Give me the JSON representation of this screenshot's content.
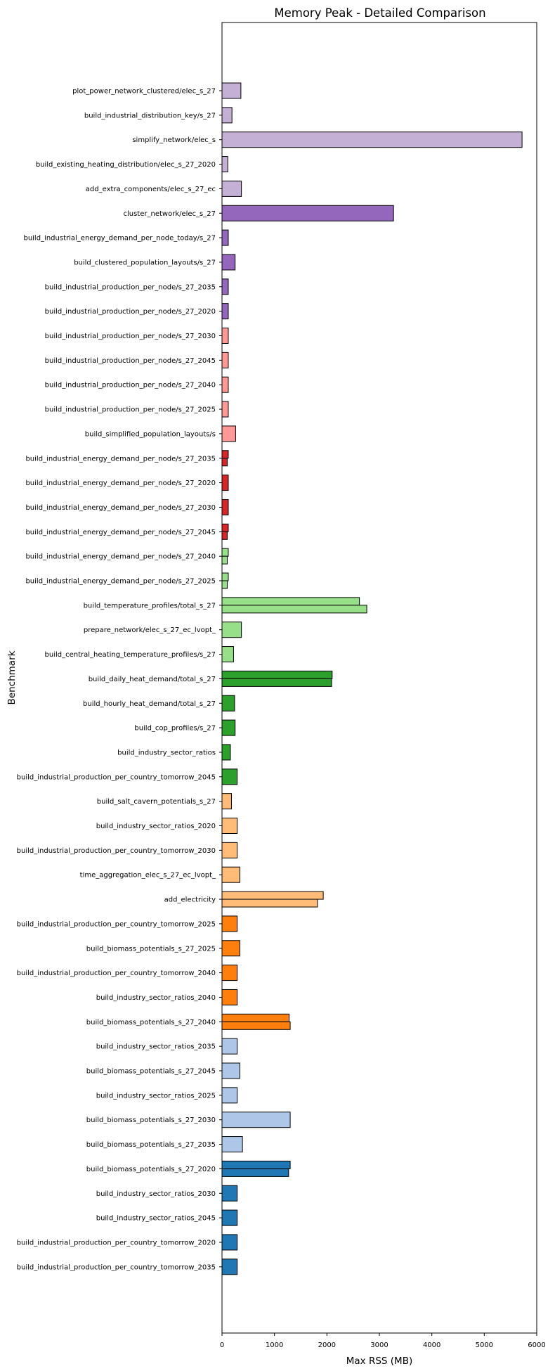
{
  "chart_data": {
    "type": "bar",
    "orientation": "horizontal",
    "title": "Memory Peak - Detailed Comparison",
    "xlabel": "Max RSS (MB)",
    "ylabel": "Benchmark",
    "xlim": [
      0,
      6000
    ],
    "xticks": [
      0,
      1000,
      2000,
      3000,
      4000,
      5000,
      6000
    ],
    "grid": false,
    "categories": [
      {
        "label": "plot_power_network_clustered/elec_s_27",
        "color": "#c5b0d5",
        "values": [
          360
        ]
      },
      {
        "label": "build_industrial_distribution_key/s_27",
        "color": "#c5b0d5",
        "values": [
          190
        ]
      },
      {
        "label": "simplify_network/elec_s",
        "color": "#c5b0d5",
        "values": [
          5720
        ]
      },
      {
        "label": "build_existing_heating_distribution/elec_s_27_2020",
        "color": "#c5b0d5",
        "values": [
          110
        ]
      },
      {
        "label": "add_extra_components/elec_s_27_ec",
        "color": "#c5b0d5",
        "values": [
          370
        ]
      },
      {
        "label": "cluster_network/elec_s_27",
        "color": "#9467bd",
        "values": [
          3270
        ]
      },
      {
        "label": "build_industrial_energy_demand_per_node_today/s_27",
        "color": "#9467bd",
        "values": [
          120
        ]
      },
      {
        "label": "build_clustered_population_layouts/s_27",
        "color": "#9467bd",
        "values": [
          250
        ]
      },
      {
        "label": "build_industrial_production_per_node/s_27_2035",
        "color": "#9467bd",
        "values": [
          120
        ]
      },
      {
        "label": "build_industrial_production_per_node/s_27_2020",
        "color": "#9467bd",
        "values": [
          120
        ]
      },
      {
        "label": "build_industrial_production_per_node/s_27_2030",
        "color": "#ff9896",
        "values": [
          120
        ]
      },
      {
        "label": "build_industrial_production_per_node/s_27_2045",
        "color": "#ff9896",
        "values": [
          120
        ]
      },
      {
        "label": "build_industrial_production_per_node/s_27_2040",
        "color": "#ff9896",
        "values": [
          120
        ]
      },
      {
        "label": "build_industrial_production_per_node/s_27_2025",
        "color": "#ff9896",
        "values": [
          120
        ]
      },
      {
        "label": "build_simplified_population_layouts/s",
        "color": "#ff9896",
        "values": [
          260
        ]
      },
      {
        "label": "build_industrial_energy_demand_per_node/s_27_2035",
        "color": "#d62728",
        "values": [
          120,
          100
        ]
      },
      {
        "label": "build_industrial_energy_demand_per_node/s_27_2020",
        "color": "#d62728",
        "values": [
          120
        ]
      },
      {
        "label": "build_industrial_energy_demand_per_node/s_27_2030",
        "color": "#d62728",
        "values": [
          120
        ]
      },
      {
        "label": "build_industrial_energy_demand_per_node/s_27_2045",
        "color": "#d62728",
        "values": [
          120,
          100
        ]
      },
      {
        "label": "build_industrial_energy_demand_per_node/s_27_2040",
        "color": "#98df8a",
        "values": [
          120,
          100
        ]
      },
      {
        "label": "build_industrial_energy_demand_per_node/s_27_2025",
        "color": "#98df8a",
        "values": [
          120,
          100
        ]
      },
      {
        "label": "build_temperature_profiles/total_s_27",
        "color": "#98df8a",
        "values": [
          2620,
          2760
        ]
      },
      {
        "label": "prepare_network/elec_s_27_ec_lvopt_",
        "color": "#98df8a",
        "values": [
          370
        ]
      },
      {
        "label": "build_central_heating_temperature_profiles/s_27",
        "color": "#98df8a",
        "values": [
          220
        ]
      },
      {
        "label": "build_daily_heat_demand/total_s_27",
        "color": "#2ca02c",
        "values": [
          2100,
          2090
        ]
      },
      {
        "label": "build_hourly_heat_demand/total_s_27",
        "color": "#2ca02c",
        "values": [
          240
        ]
      },
      {
        "label": "build_cop_profiles/s_27",
        "color": "#2ca02c",
        "values": [
          250
        ]
      },
      {
        "label": "build_industry_sector_ratios",
        "color": "#2ca02c",
        "values": [
          160
        ]
      },
      {
        "label": "build_industrial_production_per_country_tomorrow_2045",
        "color": "#2ca02c",
        "values": [
          290
        ]
      },
      {
        "label": "build_salt_cavern_potentials_s_27",
        "color": "#ffbb78",
        "values": [
          180
        ]
      },
      {
        "label": "build_industry_sector_ratios_2020",
        "color": "#ffbb78",
        "values": [
          290
        ]
      },
      {
        "label": "build_industrial_production_per_country_tomorrow_2030",
        "color": "#ffbb78",
        "values": [
          290
        ]
      },
      {
        "label": "time_aggregation_elec_s_27_ec_lvopt_",
        "color": "#ffbb78",
        "values": [
          340
        ]
      },
      {
        "label": "add_electricity",
        "color": "#ffbb78",
        "values": [
          1930,
          1820
        ]
      },
      {
        "label": "build_industrial_production_per_country_tomorrow_2025",
        "color": "#ff7f0e",
        "values": [
          290
        ]
      },
      {
        "label": "build_biomass_potentials_s_27_2025",
        "color": "#ff7f0e",
        "values": [
          340
        ]
      },
      {
        "label": "build_industrial_production_per_country_tomorrow_2040",
        "color": "#ff7f0e",
        "values": [
          290
        ]
      },
      {
        "label": "build_industry_sector_ratios_2040",
        "color": "#ff7f0e",
        "values": [
          290
        ]
      },
      {
        "label": "build_biomass_potentials_s_27_2040",
        "color": "#ff7f0e",
        "values": [
          1280,
          1300
        ]
      },
      {
        "label": "build_industry_sector_ratios_2035",
        "color": "#aec7e8",
        "values": [
          290
        ]
      },
      {
        "label": "build_biomass_potentials_s_27_2045",
        "color": "#aec7e8",
        "values": [
          340
        ]
      },
      {
        "label": "build_industry_sector_ratios_2025",
        "color": "#aec7e8",
        "values": [
          290
        ]
      },
      {
        "label": "build_biomass_potentials_s_27_2030",
        "color": "#aec7e8",
        "values": [
          1300
        ]
      },
      {
        "label": "build_biomass_potentials_s_27_2035",
        "color": "#aec7e8",
        "values": [
          390
        ]
      },
      {
        "label": "build_biomass_potentials_s_27_2020",
        "color": "#1f77b4",
        "values": [
          1300,
          1270
        ]
      },
      {
        "label": "build_industry_sector_ratios_2030",
        "color": "#1f77b4",
        "values": [
          290
        ]
      },
      {
        "label": "build_industry_sector_ratios_2045",
        "color": "#1f77b4",
        "values": [
          290
        ]
      },
      {
        "label": "build_industrial_production_per_country_tomorrow_2020",
        "color": "#1f77b4",
        "values": [
          290
        ]
      },
      {
        "label": "build_industrial_production_per_country_tomorrow_2035",
        "color": "#1f77b4",
        "values": [
          290
        ]
      }
    ]
  }
}
